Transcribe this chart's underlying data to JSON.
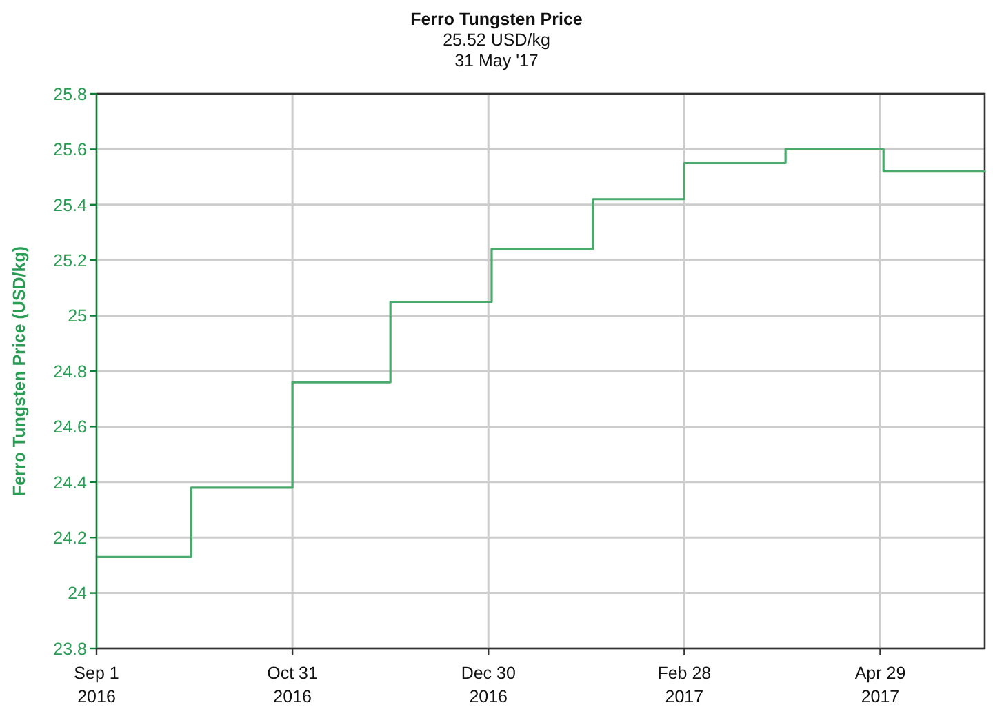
{
  "chart_data": {
    "type": "step",
    "title": "Ferro Tungsten Price",
    "subtitle": "25.52 USD/kg\n31 May '17",
    "ylabel": "Ferro Tungsten Price (USD/kg)",
    "x": [
      "2016-09-01",
      "2016-09-30",
      "2016-10-31",
      "2016-11-30",
      "2016-12-31",
      "2017-01-31",
      "2017-02-28",
      "2017-03-31",
      "2017-04-30",
      "2017-05-31"
    ],
    "values": [
      24.13,
      24.38,
      24.76,
      25.05,
      25.24,
      25.42,
      25.55,
      25.6,
      25.52,
      25.52
    ],
    "color": "#4aaa6c",
    "xlim": [
      "2016-09-01",
      "2017-05-31"
    ],
    "xticks": [
      {
        "value": "2016-09-01",
        "label": "Sep 1\n2016"
      },
      {
        "value": "2016-10-31",
        "label": "Oct 31\n2016"
      },
      {
        "value": "2016-12-30",
        "label": "Dec 30\n2016"
      },
      {
        "value": "2017-02-28",
        "label": "Feb 28\n2017"
      },
      {
        "value": "2017-04-29",
        "label": "Apr 29\n2017"
      }
    ],
    "ylim": [
      23.8,
      25.8
    ],
    "yticks": [
      23.8,
      24,
      24.2,
      24.4,
      24.6,
      24.8,
      25,
      25.2,
      25.4,
      25.6,
      25.8
    ],
    "grid": true
  }
}
